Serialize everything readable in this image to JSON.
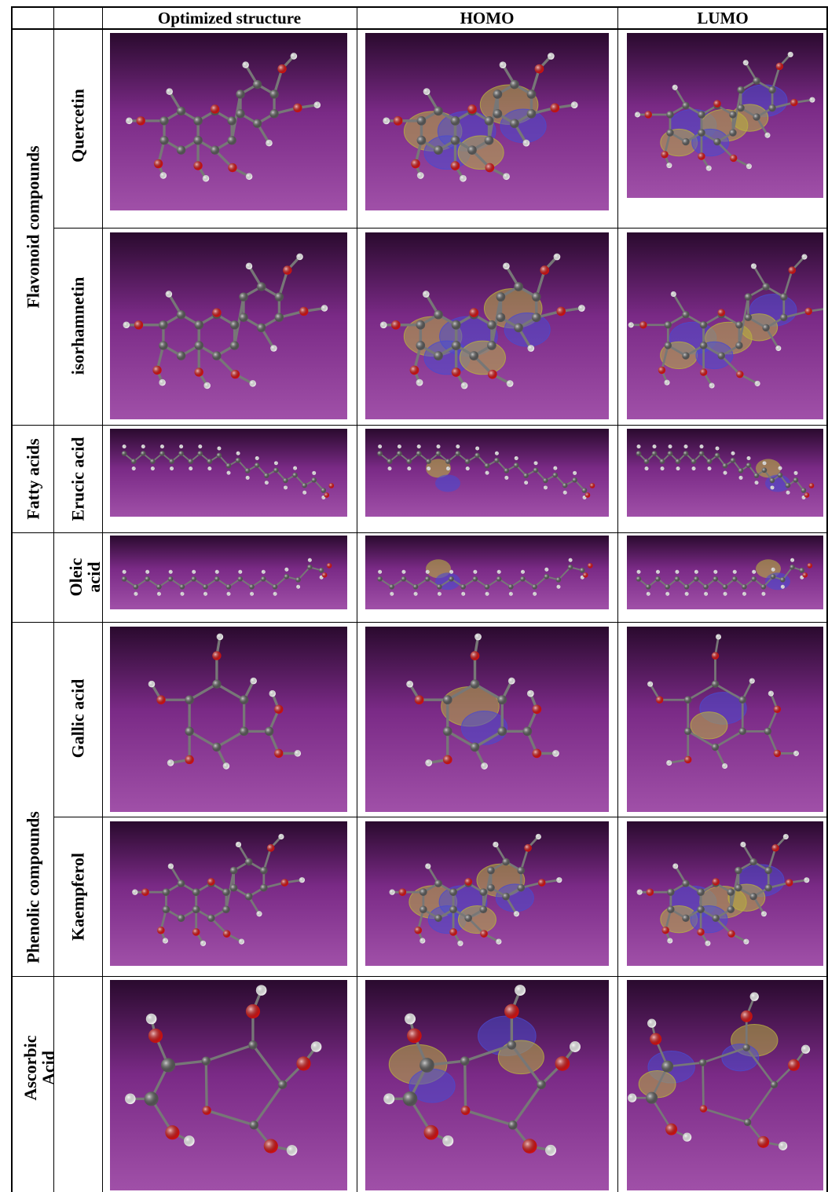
{
  "table": {
    "headers": [
      "Optimized structure",
      "HOMO",
      "LUMO"
    ],
    "groups": [
      {
        "label": "Flavonoid compounds"
      },
      {
        "label": "Fatty acids"
      },
      {
        "label": "Phenolic compounds"
      },
      {
        "label_line1": "Ascorbic",
        "label_line2": "Acid"
      }
    ],
    "compounds": [
      {
        "name": "Quercetin"
      },
      {
        "name": "isorhamnetin"
      },
      {
        "name": "Erucic acid"
      },
      {
        "name_line1": "Oleic",
        "name_line2": "acid"
      },
      {
        "name": "Gallic acid"
      },
      {
        "name": "Kaempferol"
      }
    ]
  },
  "colors": {
    "background_top": "#2a0a2e",
    "background_bottom": "#a050a8",
    "carbon": "#555555",
    "oxygen": "#cc1111",
    "hydrogen": "#f0f0f0",
    "orbital_positive": "#4a4ad0",
    "orbital_negative": "#b8b040"
  }
}
